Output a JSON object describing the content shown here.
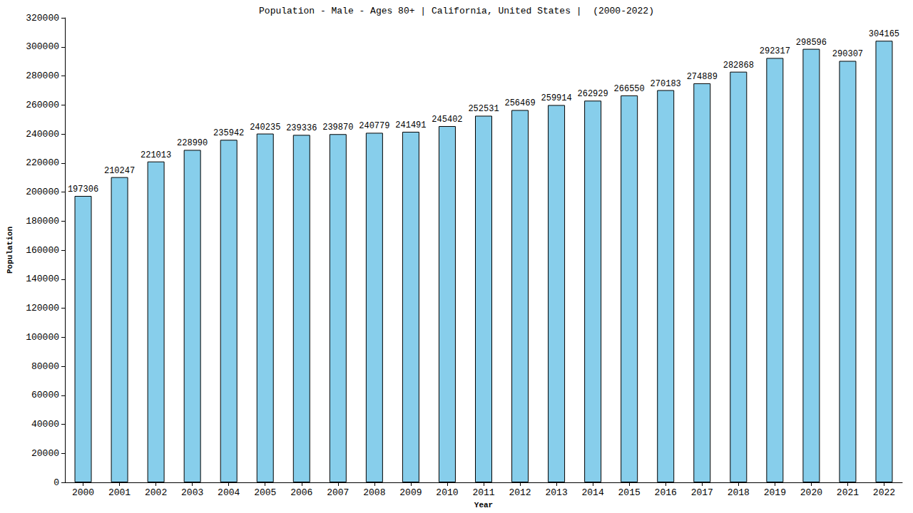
{
  "chart_data": {
    "type": "bar",
    "title": "Population - Male - Ages 80+ | California, United States |  (2000-2022)",
    "x_label": "Year",
    "y_label": "Population",
    "categories": [
      "2000",
      "2001",
      "2002",
      "2003",
      "2004",
      "2005",
      "2006",
      "2007",
      "2008",
      "2009",
      "2010",
      "2011",
      "2012",
      "2013",
      "2014",
      "2015",
      "2016",
      "2017",
      "2018",
      "2019",
      "2020",
      "2021",
      "2022"
    ],
    "values": [
      197306,
      210247,
      221013,
      228990,
      235942,
      240235,
      239336,
      239870,
      240779,
      241491,
      245402,
      252531,
      256469,
      259914,
      262929,
      266550,
      270183,
      274889,
      282868,
      292317,
      298596,
      290307,
      304165
    ],
    "color": "#87ceeb",
    "ylim": [
      0,
      320000
    ],
    "yticks": [
      0,
      20000,
      40000,
      60000,
      80000,
      100000,
      120000,
      140000,
      160000,
      180000,
      200000,
      220000,
      240000,
      260000,
      280000,
      300000,
      320000
    ],
    "grid": false,
    "data_labels": true
  }
}
